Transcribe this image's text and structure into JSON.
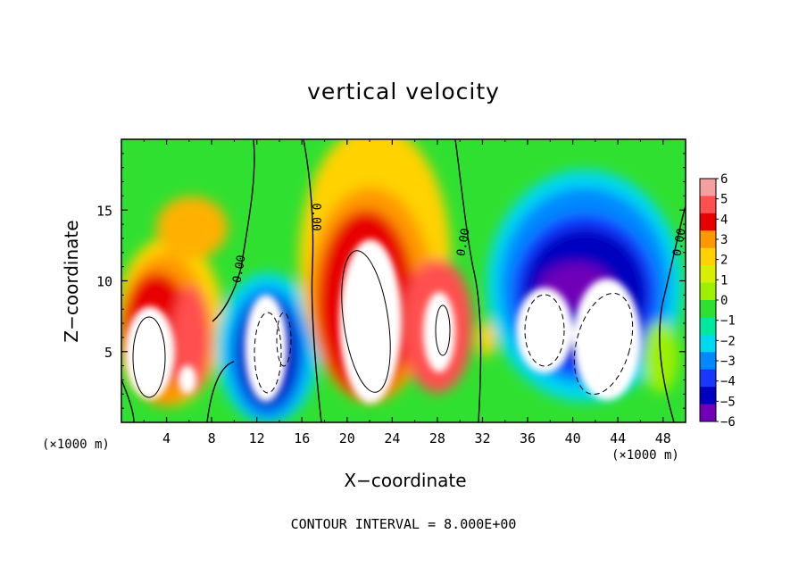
{
  "chart_data": {
    "type": "heatmap",
    "title": "vertical velocity",
    "xlabel": "X−coordinate",
    "ylabel": "Z−coordinate",
    "x_unit_label": "(×1000 m)",
    "x_ticks": [
      "4",
      "8",
      "12",
      "16",
      "20",
      "24",
      "28",
      "32",
      "36",
      "40",
      "44",
      "48"
    ],
    "y_ticks": [
      "5",
      "10",
      "15"
    ],
    "xlim": [
      0,
      50
    ],
    "ylim": [
      0,
      20
    ],
    "colorbar": {
      "labels": [
        "6",
        "5",
        "4",
        "3",
        "2",
        "1",
        "0",
        "−1",
        "−2",
        "−3",
        "−4",
        "−5",
        "−6"
      ],
      "range": [
        -6,
        6
      ],
      "colors_top_to_bottom": [
        "#f5a0a0",
        "#ff5050",
        "#e80000",
        "#ff9800",
        "#ffd200",
        "#d8f000",
        "#9cf000",
        "#30e030",
        "#00e8a0",
        "#00d8f0",
        "#0088ff",
        "#1838ff",
        "#0000c0",
        "#7000b8"
      ]
    },
    "contour_labels": [
      "0.00",
      "0.00",
      "0.00",
      "0.00"
    ],
    "cells": [
      {
        "x": 3.0,
        "z": 5.0,
        "value": 7.5,
        "sx": 2.3,
        "sz": 3.4
      },
      {
        "x": 6.5,
        "z": 6.0,
        "value": 5.0,
        "sx": 1.8,
        "sz": 3.0
      },
      {
        "x": 5.0,
        "z": 13.5,
        "value": 3.5,
        "sx": 3.0,
        "sz": 2.5
      },
      {
        "x": 13.5,
        "z": 5.5,
        "value": -8.0,
        "sx": 2.2,
        "sz": 3.5
      },
      {
        "x": 22.5,
        "z": 7.5,
        "value": 10.0,
        "sx": 3.5,
        "sz": 6.5
      },
      {
        "x": 28.0,
        "z": 5.5,
        "value": 6.0,
        "sx": 2.0,
        "sz": 3.5
      },
      {
        "x": 38.0,
        "z": 7.0,
        "value": -8.0,
        "sx": 3.0,
        "sz": 4.0
      },
      {
        "x": 43.5,
        "z": 6.0,
        "value": -8.0,
        "sx": 3.0,
        "sz": 4.5
      },
      {
        "x": 41.0,
        "z": 14.0,
        "value": -4.5,
        "sx": 5.0,
        "sz": 4.0
      }
    ]
  },
  "page": {
    "contour_interval_text": "CONTOUR INTERVAL =  8.000E+00"
  }
}
